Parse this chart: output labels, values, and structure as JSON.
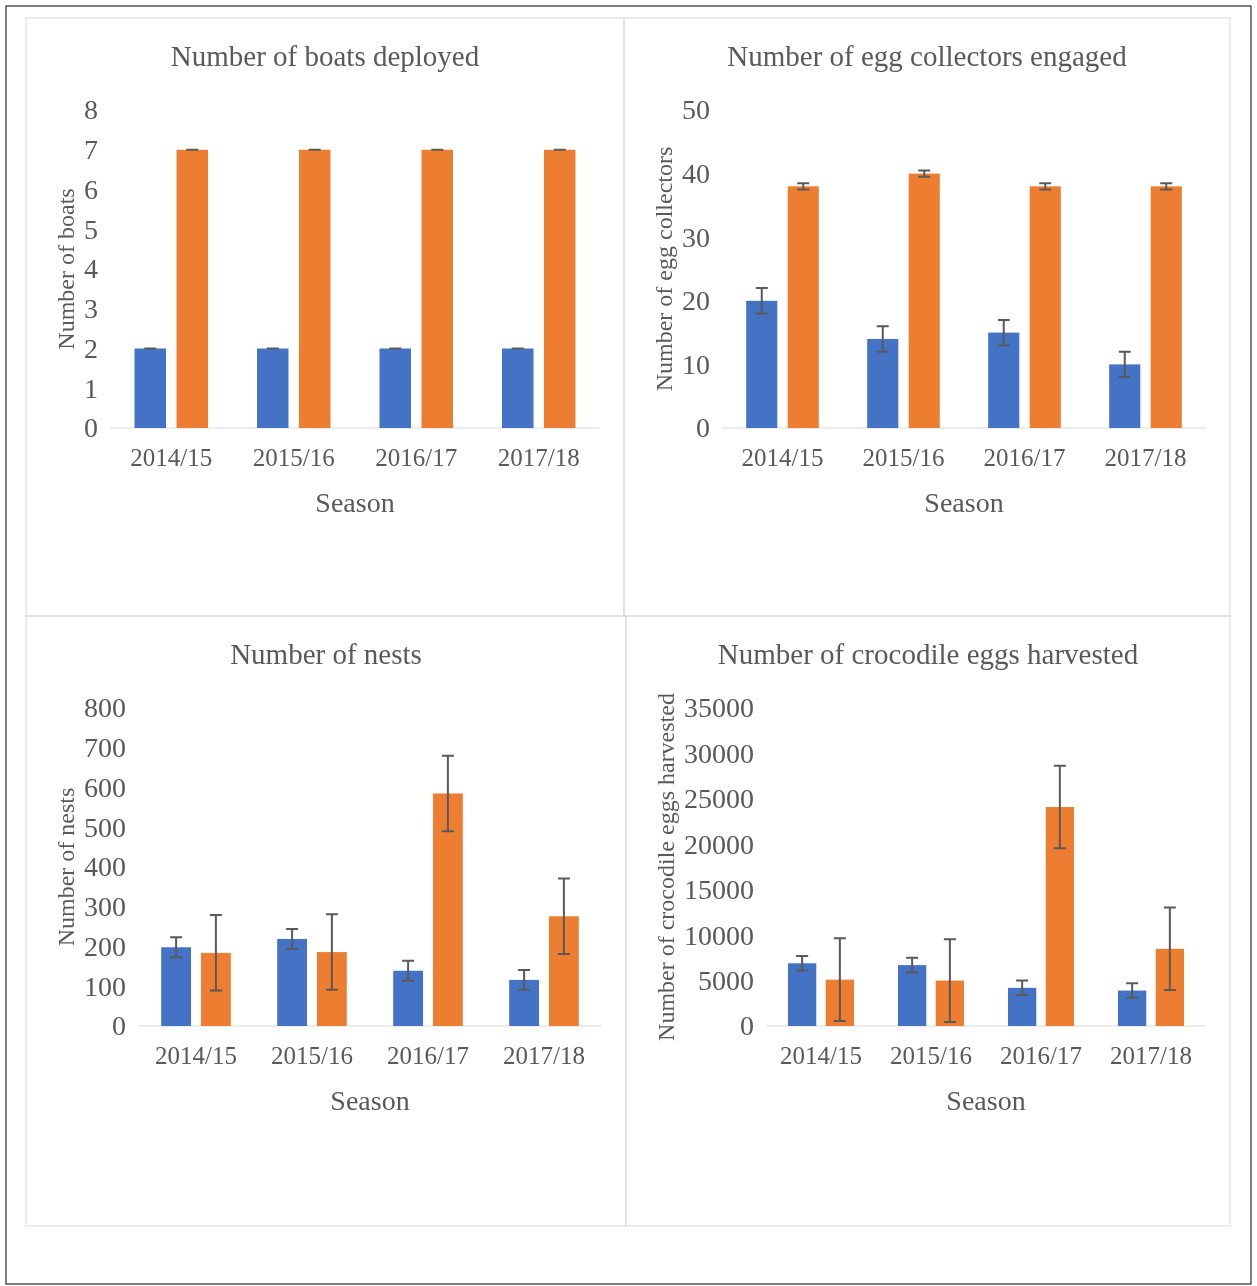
{
  "chart_data": [
    {
      "type": "bar",
      "title": "Number of boats deployed",
      "xlabel": "Season",
      "ylabel": "Number of boats",
      "categories": [
        "2014/15",
        "2015/16",
        "2016/17",
        "2017/18"
      ],
      "ylim": [
        0,
        8
      ],
      "yticks": [
        0,
        1,
        2,
        3,
        4,
        5,
        6,
        7,
        8
      ],
      "grid": false,
      "series": [
        {
          "color": "#4472c4",
          "values": [
            2,
            2,
            2,
            2
          ],
          "errors": [
            0,
            0,
            0,
            0
          ]
        },
        {
          "color": "#ed7d31",
          "values": [
            7,
            7,
            7,
            7
          ],
          "errors": [
            0,
            0,
            0,
            0
          ]
        }
      ]
    },
    {
      "type": "bar",
      "title": "Number of egg collectors engaged",
      "xlabel": "Season",
      "ylabel": "Number of egg collectors",
      "categories": [
        "2014/15",
        "2015/16",
        "2016/17",
        "2017/18"
      ],
      "ylim": [
        0,
        50
      ],
      "yticks": [
        0,
        10,
        20,
        30,
        40,
        50
      ],
      "grid": false,
      "series": [
        {
          "color": "#4472c4",
          "values": [
            20,
            14,
            15,
            10
          ],
          "errors": [
            2,
            2,
            2,
            2
          ]
        },
        {
          "color": "#ed7d31",
          "values": [
            38,
            40,
            38,
            38
          ],
          "errors": [
            0.5,
            0.5,
            0.5,
            0.5
          ]
        }
      ]
    },
    {
      "type": "bar",
      "title": "Number of nests",
      "xlabel": "Season",
      "ylabel": "Number of nests",
      "categories": [
        "2014/15",
        "2015/16",
        "2016/17",
        "2017/18"
      ],
      "ylim": [
        0,
        800
      ],
      "yticks": [
        0,
        100,
        200,
        300,
        400,
        500,
        600,
        700,
        800
      ],
      "grid": false,
      "series": [
        {
          "color": "#4472c4",
          "values": [
            198,
            219,
            139,
            116
          ],
          "errors": [
            25,
            25,
            25,
            25
          ]
        },
        {
          "color": "#ed7d31",
          "values": [
            184,
            186,
            585,
            276
          ],
          "errors": [
            95,
            95,
            95,
            95
          ]
        }
      ]
    },
    {
      "type": "bar",
      "title": "Number of crocodile eggs harvested",
      "xlabel": "Season",
      "ylabel": "Number of crocodile eggs harvested",
      "categories": [
        "2014/15",
        "2015/16",
        "2016/17",
        "2017/18"
      ],
      "ylim": [
        0,
        35000
      ],
      "yticks": [
        0,
        5000,
        10000,
        15000,
        20000,
        25000,
        30000,
        35000
      ],
      "grid": false,
      "series": [
        {
          "color": "#4472c4",
          "values": [
            6900,
            6700,
            4200,
            3900
          ],
          "errors": [
            800,
            800,
            800,
            800
          ]
        },
        {
          "color": "#ed7d31",
          "values": [
            5100,
            5000,
            24100,
            8500
          ],
          "errors": [
            4550,
            4550,
            4550,
            4550
          ]
        }
      ]
    }
  ]
}
